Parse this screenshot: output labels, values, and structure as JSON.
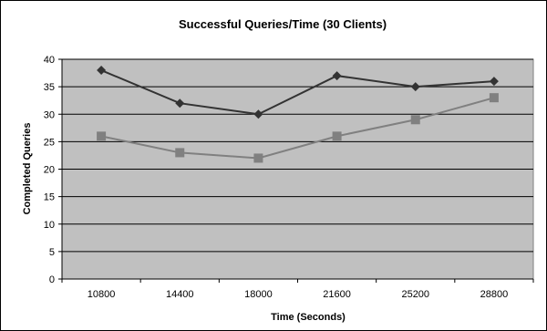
{
  "chart_data": {
    "type": "line",
    "title": "Successful Queries/Time (30 Clients)",
    "xlabel": "Time (Seconds)",
    "ylabel": "Completed Queries",
    "categories": [
      "10800",
      "14400",
      "18000",
      "21600",
      "25200",
      "28800"
    ],
    "ylim": [
      0,
      40
    ],
    "yticks": [
      0,
      5,
      10,
      15,
      20,
      25,
      30,
      35,
      40
    ],
    "grid": true,
    "legend": "none",
    "plot_background": "#c0c0c0",
    "series": [
      {
        "values": [
          38,
          32,
          30,
          37,
          35,
          36
        ],
        "color": "#333333",
        "marker": "diamond"
      },
      {
        "values": [
          26,
          23,
          22,
          26,
          29,
          33
        ],
        "color": "#808080",
        "marker": "square"
      }
    ]
  }
}
